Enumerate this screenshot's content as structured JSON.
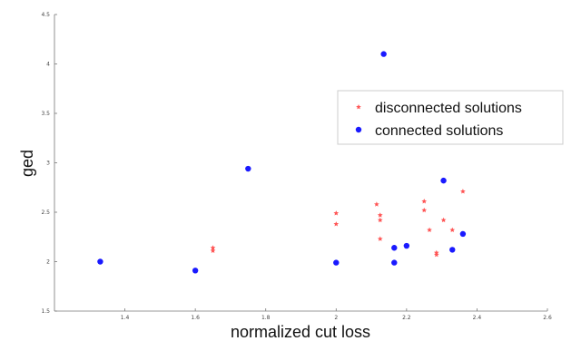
{
  "chart_data": {
    "type": "scatter",
    "title": "",
    "xlabel": "normalized cut loss",
    "ylabel": "ged",
    "xlim": [
      1.2,
      2.6
    ],
    "ylim": [
      1.5,
      4.5
    ],
    "xticks": [
      "1.4",
      "1.6",
      "1.8",
      "2",
      "2.2",
      "2.4",
      "2.6"
    ],
    "yticks": [
      "1.5",
      "2",
      "2.5",
      "3",
      "3.5",
      "4",
      "4.5"
    ],
    "grid": false,
    "legend_position": "upper-right",
    "series": [
      {
        "name": "disconnected solutions",
        "color": "#ff5555",
        "marker": "star",
        "points": [
          {
            "x": 1.65,
            "y": 2.14
          },
          {
            "x": 1.65,
            "y": 2.11
          },
          {
            "x": 2.0,
            "y": 2.49
          },
          {
            "x": 2.0,
            "y": 2.38
          },
          {
            "x": 2.115,
            "y": 2.58
          },
          {
            "x": 2.125,
            "y": 2.47
          },
          {
            "x": 2.125,
            "y": 2.42
          },
          {
            "x": 2.125,
            "y": 2.23
          },
          {
            "x": 2.25,
            "y": 2.61
          },
          {
            "x": 2.25,
            "y": 2.52
          },
          {
            "x": 2.265,
            "y": 2.32
          },
          {
            "x": 2.285,
            "y": 2.09
          },
          {
            "x": 2.285,
            "y": 2.07
          },
          {
            "x": 2.305,
            "y": 2.42
          },
          {
            "x": 2.33,
            "y": 2.32
          },
          {
            "x": 2.36,
            "y": 2.71
          }
        ]
      },
      {
        "name": "connected solutions",
        "color": "#1a1aff",
        "marker": "circle",
        "points": [
          {
            "x": 1.33,
            "y": 2.0
          },
          {
            "x": 1.6,
            "y": 1.91
          },
          {
            "x": 1.75,
            "y": 2.94
          },
          {
            "x": 2.0,
            "y": 1.99
          },
          {
            "x": 2.135,
            "y": 4.1
          },
          {
            "x": 2.165,
            "y": 2.14
          },
          {
            "x": 2.165,
            "y": 1.99
          },
          {
            "x": 2.2,
            "y": 2.16
          },
          {
            "x": 2.305,
            "y": 2.82
          },
          {
            "x": 2.33,
            "y": 2.12
          },
          {
            "x": 2.36,
            "y": 2.28
          }
        ]
      }
    ]
  }
}
